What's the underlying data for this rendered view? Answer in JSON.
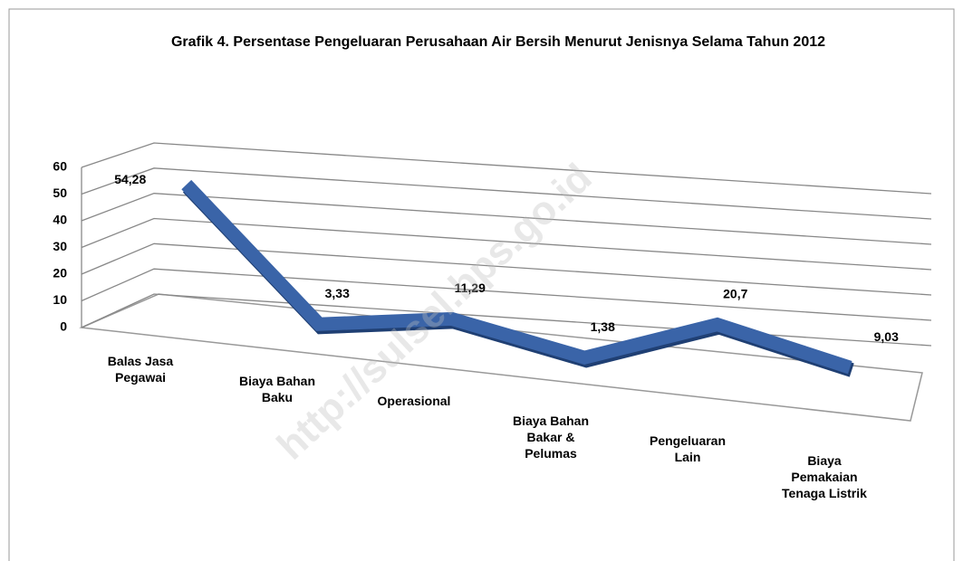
{
  "chart_data": {
    "type": "line3d",
    "title": "Grafik 4. Persentase Pengeluaran Perusahaan Air Bersih Menurut Jenisnya Selama Tahun 2012",
    "categories": [
      "Balas Jasa Pegawai",
      "Biaya Bahan Baku",
      "Operasional",
      "Biaya Bahan Bakar & Pelumas",
      "Pengeluaran Lain",
      "Biaya Pemakaian Tenaga Listrik"
    ],
    "values": [
      54.28,
      3.33,
      11.29,
      1.38,
      20.7,
      9.03
    ],
    "value_labels": [
      "54,28",
      "3,33",
      "11,29",
      "1,38",
      "20,7",
      "9,03"
    ],
    "color": "#3a64a8",
    "ylim": [
      0,
      60
    ],
    "yticks": [
      0,
      10,
      20,
      30,
      40,
      50,
      60
    ],
    "grid": true,
    "watermark": "http://sulsel.bps.go.id"
  }
}
